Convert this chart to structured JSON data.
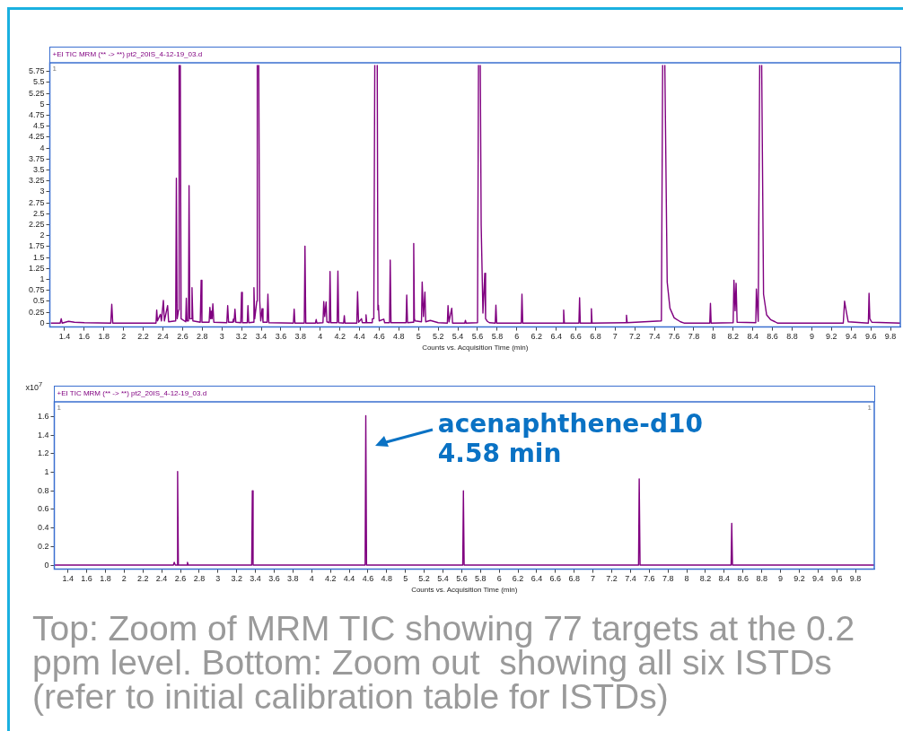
{
  "chart_data": [
    {
      "type": "line",
      "title": "+EI TIC MRM (** -> **) pt2_20IS_4-12-19_03.d",
      "xlabel": "Counts vs. Acquisition Time (min)",
      "annotations": [
        "1"
      ],
      "xlim": [
        1.25,
        9.9
      ],
      "xticks": [
        1.4,
        1.6,
        1.8,
        2,
        2.2,
        2.4,
        2.6,
        2.8,
        3,
        3.2,
        3.4,
        3.6,
        3.8,
        4,
        4.2,
        4.4,
        4.6,
        4.8,
        5,
        5.2,
        5.4,
        5.6,
        5.8,
        6,
        6.2,
        6.4,
        6.6,
        6.8,
        7,
        7.2,
        7.4,
        7.6,
        7.8,
        8,
        8.2,
        8.4,
        8.6,
        8.8,
        9,
        9.2,
        9.4,
        9.6,
        9.8
      ],
      "ylim": [
        -0.09,
        5.95
      ],
      "yticks": [
        0,
        0.25,
        0.5,
        0.75,
        1,
        1.25,
        1.5,
        1.75,
        2,
        2.25,
        2.5,
        2.75,
        3,
        3.25,
        3.5,
        3.75,
        4,
        4.25,
        4.5,
        4.75,
        5,
        5.25,
        5.5,
        5.75
      ],
      "grid": false,
      "legend": false,
      "series": [
        {
          "color": "#800080",
          "x": [
            1.26,
            1.355,
            1.366,
            1.375,
            1.44,
            1.5,
            1.6,
            1.87,
            1.88,
            1.89,
            2.33,
            2.337,
            2.345,
            2.374,
            2.385,
            2.405,
            2.415,
            2.448,
            2.458,
            2.53,
            2.537,
            2.545,
            2.56,
            2.565,
            2.571,
            2.577,
            2.585,
            2.632,
            2.638,
            2.645,
            2.66,
            2.666,
            2.674,
            2.69,
            2.696,
            2.705,
            2.78,
            2.789,
            2.797,
            2.87,
            2.878,
            2.886,
            2.893,
            2.9,
            2.908,
            2.918,
            3.05,
            3.059,
            3.068,
            3.11,
            3.117,
            3.124,
            3.133,
            3.142,
            3.192,
            3.2,
            3.208,
            3.258,
            3.265,
            3.273,
            3.318,
            3.326,
            3.334,
            3.355,
            3.36,
            3.367,
            3.375,
            3.385,
            3.395,
            3.409,
            3.418,
            3.46,
            3.468,
            3.477,
            3.727,
            3.735,
            3.743,
            3.838,
            3.845,
            3.853,
            3.952,
            3.959,
            3.966,
            4.028,
            4.036,
            4.046,
            4.06,
            4.068,
            4.093,
            4.1,
            4.108,
            4.172,
            4.18,
            4.188,
            4.238,
            4.245,
            4.252,
            4.372,
            4.38,
            4.39,
            4.42,
            4.428,
            4.459,
            4.466,
            4.473,
            4.523,
            4.53,
            4.545,
            4.555,
            4.568,
            4.58,
            4.587,
            4.592,
            4.6,
            4.647,
            4.655,
            4.705,
            4.712,
            4.72,
            4.873,
            4.88,
            4.888,
            4.944,
            4.951,
            4.958,
            4.965,
            5.03,
            5.037,
            5.05,
            5.065,
            5.073,
            5.12,
            5.2,
            5.293,
            5.3,
            5.31,
            5.338,
            5.346,
            5.47,
            5.477,
            5.484,
            5.6,
            5.61,
            5.62,
            5.628,
            5.637,
            5.655,
            5.674,
            5.682,
            5.7,
            5.72,
            5.78,
            5.787,
            5.795,
            6.045,
            6.052,
            6.06,
            6.47,
            6.476,
            6.483,
            6.631,
            6.638,
            6.645,
            6.752,
            6.758,
            6.765,
            7.108,
            7.115,
            7.122,
            7.47,
            7.483,
            7.494,
            7.505,
            7.529,
            7.557,
            7.6,
            7.664,
            7.7,
            7.962,
            7.969,
            7.976,
            8.2,
            8.208,
            8.22,
            8.23,
            8.24,
            8.43,
            8.436,
            8.455,
            8.47,
            8.48,
            8.49,
            8.509,
            8.54,
            8.58,
            8.626,
            8.65,
            9.32,
            9.333,
            9.351,
            9.37,
            9.575,
            9.582,
            9.59,
            9.61,
            9.9
          ],
          "values": [
            0,
            0,
            0.1,
            0,
            0.04,
            0.02,
            0.01,
            0,
            0.43,
            0,
            0,
            0.3,
            0.05,
            0.2,
            0.05,
            0.52,
            0.05,
            0.4,
            0.03,
            0.05,
            3.31,
            0.1,
            0.3,
            5.9,
            null,
            5.9,
            0.1,
            0.03,
            0.57,
            0.05,
            0.05,
            3.14,
            0.1,
            0.1,
            0.81,
            0.05,
            0.02,
            0.98,
            0.02,
            0.02,
            0.36,
            0.1,
            0.27,
            0.1,
            0.44,
            0.02,
            0.01,
            0.4,
            0.02,
            0.02,
            0.09,
            0.03,
            0.32,
            0.02,
            0.01,
            0.7,
            0.01,
            0.01,
            0.4,
            0.01,
            0.02,
            0.81,
            0.1,
            0.5,
            5.9,
            null,
            5.9,
            0.5,
            0.05,
            0.33,
            0.02,
            0.02,
            0.66,
            0.01,
            0,
            0.32,
            0,
            0,
            1.76,
            0,
            0,
            0.08,
            0,
            0.01,
            0.49,
            0.15,
            0.48,
            0.03,
            0.01,
            1.18,
            0.01,
            0.01,
            1.19,
            0.01,
            0,
            0.17,
            0,
            0,
            0.72,
            0.02,
            0.1,
            0.01,
            0.01,
            0.19,
            0.01,
            0.01,
            0.1,
            0.1,
            5.9,
            null,
            5.9,
            0.3,
            0.41,
            0.05,
            0.09,
            0.01,
            0.01,
            1.44,
            0.01,
            0.01,
            0.64,
            0.01,
            0.02,
            1.82,
            0.1,
            0.05,
            0.03,
            0.94,
            0.15,
            0.71,
            0.03,
            0.06,
            0.01,
            0,
            0.4,
            0.03,
            0.34,
            0,
            0,
            0.06,
            0,
            0.01,
            5.9,
            null,
            5.9,
            2.25,
            0.23,
            1.14,
            0.1,
            0.04,
            0.01,
            0,
            0.41,
            0,
            0,
            0.66,
            0,
            0,
            0.3,
            0,
            0,
            0.58,
            0,
            0,
            0.33,
            0,
            0.01,
            0.18,
            0.01,
            0.05,
            5.9,
            null,
            5.9,
            0.94,
            0.34,
            0.12,
            0.03,
            0,
            0,
            0.45,
            0,
            0.01,
            0.98,
            0.28,
            0.91,
            0.02,
            0.01,
            0.78,
            0.04,
            5.9,
            null,
            5.9,
            0.66,
            0.19,
            0.08,
            0.03,
            0,
            0,
            0.5,
            0.26,
            0.03,
            0,
            0.68,
            0.1,
            0.02,
            0
          ]
        }
      ]
    },
    {
      "type": "line",
      "title": "+EI TIC MRM (** -> **) pt2_20IS_4-12-19_03.d",
      "xlabel": "Counts vs. Acquisition Time (min)",
      "ylabel": "x10$^{7}$",
      "annotations": [
        "1",
        "1",
        {
          "text": "acenaphthene-d10\n4.58 min",
          "x": 4.58,
          "y": 1.61
        },
        "Top: Zoom of MRM TIC showing 77 targets at the 0.2 ppm level. Bottom: Zoom out  showing all six ISTDs (refer to initial calibration table for ISTDs)"
      ],
      "xlim": [
        1.255,
        10.0
      ],
      "xticks": [
        1.4,
        1.6,
        1.8,
        2,
        2.2,
        2.4,
        2.6,
        2.8,
        3,
        3.2,
        3.4,
        3.6,
        3.8,
        4,
        4.2,
        4.4,
        4.6,
        4.8,
        5,
        5.2,
        5.4,
        5.6,
        5.8,
        6,
        6.2,
        6.4,
        6.6,
        6.8,
        7,
        7.2,
        7.4,
        7.6,
        7.8,
        8,
        8.2,
        8.4,
        8.6,
        8.8,
        9,
        9.2,
        9.4,
        9.6,
        9.8
      ],
      "ylim": [
        -0.044,
        1.76
      ],
      "yticks": [
        0,
        0.2,
        0.4,
        0.6,
        0.8,
        1,
        1.2,
        1.4,
        1.6
      ],
      "grid": false,
      "legend": false,
      "series": [
        {
          "color": "#800080",
          "x": [
            1.26,
            2.525,
            2.534,
            2.545,
            2.563,
            2.57,
            2.578,
            2.668,
            2.675,
            2.683,
            3.36,
            3.367,
            3.375,
            4.57,
            4.577,
            4.585,
            5.611,
            5.618,
            5.626,
            7.486,
            7.493,
            7.502,
            8.473,
            8.48,
            8.488,
            10.0
          ],
          "values": [
            0,
            0,
            0.03,
            0,
            0,
            1.01,
            0,
            0,
            0.03,
            0,
            0,
            0.8,
            0,
            0,
            1.61,
            0,
            0,
            0.8,
            0,
            0,
            0.93,
            0,
            0,
            0.45,
            0,
            0
          ]
        }
      ]
    }
  ]
}
